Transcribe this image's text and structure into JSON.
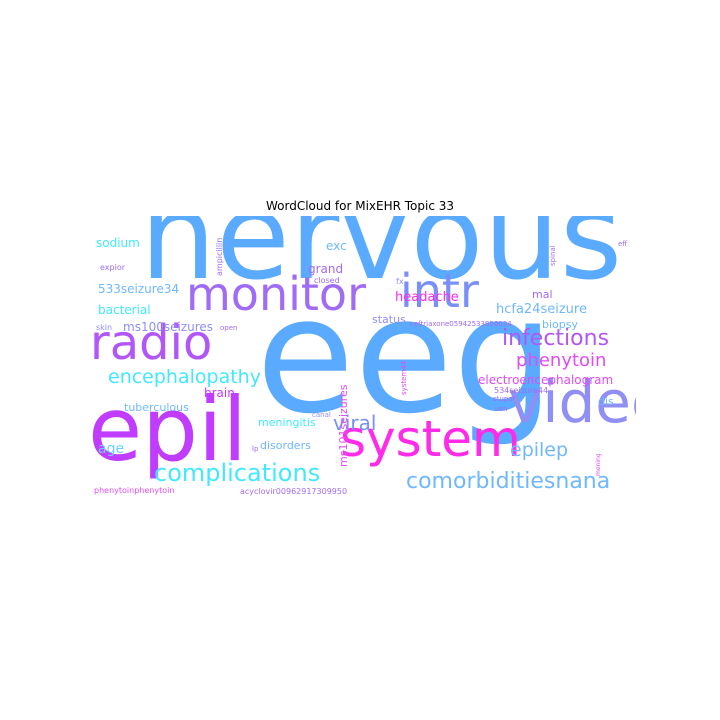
{
  "chart_data": {
    "type": "wordcloud",
    "title": "WordCloud for MixEHR Topic 33",
    "palette": [
      "#5aaaff",
      "#a06cf5",
      "#ff2be8",
      "#ffffff",
      "#42e8ff",
      "#c03cff",
      "#6fd0ff",
      "#e04df2",
      "#8f8ff5"
    ],
    "words": [
      {
        "text": "eeg",
        "weight": 100,
        "color": "#5aaaff"
      },
      {
        "text": "nervous",
        "weight": 84,
        "color": "#5aaaff"
      },
      {
        "text": "epil",
        "weight": 62,
        "color": "#c03cff"
      },
      {
        "text": "video",
        "weight": 41,
        "color": "#8f8ff5"
      },
      {
        "text": "system",
        "weight": 38,
        "color": "#ff2be8"
      },
      {
        "text": "radio",
        "weight": 35,
        "color": "#b257f7"
      },
      {
        "text": "monitor",
        "weight": 33,
        "color": "#a06cf5"
      },
      {
        "text": "intr",
        "weight": 33,
        "color": "#7a8ff7"
      },
      {
        "text": "complications",
        "weight": 18,
        "color": "#42e8ff"
      },
      {
        "text": "comorbiditiesnana",
        "weight": 17,
        "color": "#6fb8ff"
      },
      {
        "text": "infections",
        "weight": 16,
        "color": "#b257f7"
      },
      {
        "text": "encephalopathy",
        "weight": 14,
        "color": "#42e8ff"
      },
      {
        "text": "viral",
        "weight": 14,
        "color": "#7a8ff7"
      },
      {
        "text": "epilep",
        "weight": 14,
        "color": "#6fb8ff"
      },
      {
        "text": "phenytoin",
        "weight": 13,
        "color": "#e04df2"
      },
      {
        "text": "age",
        "weight": 10,
        "color": "#6fd0ff"
      },
      {
        "text": "headache",
        "weight": 9,
        "color": "#ff2be8"
      },
      {
        "text": "hcfa24seizure",
        "weight": 9,
        "color": "#6fb8ff"
      },
      {
        "text": "electroencephalogram",
        "weight": 9,
        "color": "#e04df2"
      },
      {
        "text": "ms100seizures",
        "weight": 9,
        "color": "#8f8ff5"
      },
      {
        "text": "533seizure34",
        "weight": 9,
        "color": "#6fb8ff"
      },
      {
        "text": "bacterial",
        "weight": 9,
        "color": "#42e8ff"
      },
      {
        "text": "sodium",
        "weight": 9,
        "color": "#42e8ff"
      },
      {
        "text": "grand",
        "weight": 9,
        "color": "#a06cf5"
      },
      {
        "text": "exc",
        "weight": 9,
        "color": "#6fb8ff"
      },
      {
        "text": "brain",
        "weight": 9,
        "color": "#c03cff"
      },
      {
        "text": "mal",
        "weight": 8,
        "color": "#a06cf5"
      },
      {
        "text": "biopsy",
        "weight": 8,
        "color": "#6fb8ff"
      },
      {
        "text": "status",
        "weight": 8,
        "color": "#8f8ff5"
      },
      {
        "text": "tuberculous",
        "weight": 8,
        "color": "#6fb8ff"
      },
      {
        "text": "meningitis",
        "weight": 8,
        "color": "#42e8ff"
      },
      {
        "text": "disorders",
        "weight": 8,
        "color": "#6fb8ff"
      },
      {
        "text": "dis",
        "weight": 8,
        "color": "#6fb8ff"
      },
      {
        "text": "ms101seizures",
        "weight": 8,
        "color": "#e04df2"
      },
      {
        "text": "skin",
        "weight": 6,
        "color": "#8f8ff5"
      },
      {
        "text": "expior",
        "weight": 6,
        "color": "#a06cf5"
      },
      {
        "text": "open",
        "weight": 6,
        "color": "#a06cf5"
      },
      {
        "text": "closed",
        "weight": 6,
        "color": "#a06cf5"
      },
      {
        "text": "canal",
        "weight": 6,
        "color": "#8f8ff5"
      },
      {
        "text": "stupor",
        "weight": 6,
        "color": "#a06cf5"
      },
      {
        "text": "spinal",
        "weight": 6,
        "color": "#a06cf5"
      },
      {
        "text": "fx",
        "weight": 6,
        "color": "#8f8ff5"
      },
      {
        "text": "ampicillin",
        "weight": 6,
        "color": "#a06cf5"
      },
      {
        "text": "system44",
        "weight": 6,
        "color": "#e04df2"
      },
      {
        "text": "ceftriaxone05942533850034",
        "weight": 6,
        "color": "#a06cf5"
      },
      {
        "text": "534seizure44",
        "weight": 6,
        "color": "#a06cf5"
      },
      {
        "text": "phenytoinphenytoin",
        "weight": 6,
        "color": "#e04df2"
      },
      {
        "text": "acyclovir00962917309950",
        "weight": 6,
        "color": "#a06cf5"
      },
      {
        "text": "eff",
        "weight": 5,
        "color": "#a06cf5"
      },
      {
        "text": "lp",
        "weight": 5,
        "color": "#a06cf5"
      },
      {
        "text": "usn",
        "weight": 5,
        "color": "#a06cf5"
      },
      {
        "text": "mening",
        "weight": 5,
        "color": "#e04df2"
      }
    ]
  }
}
